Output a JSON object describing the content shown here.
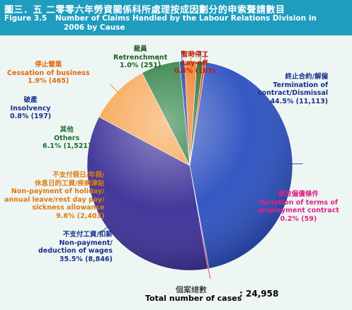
{
  "header": {
    "title_zh": "圖三．五 二零零六年勞資關係科所處理按成因劃分的申索聲請數目",
    "figure_label": "Figure 3.5",
    "title_en_line1": "Number of Claims Handled by the Labour Relations Division in",
    "title_en_line2": "2006 by Cause"
  },
  "colors": {
    "header_bg": "#1e9dbf",
    "page_bg": "#eef6f4"
  },
  "chart_data": {
    "type": "pie",
    "title": "Number of Claims Handled by the Labour Relations Division in 2006 by Cause",
    "slices": [
      {
        "name_zh": "終止合約/解僱",
        "name_en": [
          "Termination of",
          "contract/Dismissal"
        ],
        "percent": 44.5,
        "count": 11113,
        "value_text": "44.5% (11,113)",
        "color": "#2a4fc0",
        "label_color": "#1a2f8a"
      },
      {
        "name_zh": "更改僱傭條件",
        "name_en": [
          "Variation of terms of",
          "employment contract"
        ],
        "percent": 0.2,
        "count": 59,
        "value_text": "0.2% (59)",
        "color": "#e8339a",
        "label_color": "#e0228a"
      },
      {
        "name_zh": "不支付工資/扣薪",
        "name_en": [
          "Non-payment/",
          "deduction of wages"
        ],
        "percent": 35.5,
        "count": 8846,
        "value_text": "35.5% (8,846)",
        "color": "#3a2e96",
        "label_color": "#1a2f8a"
      },
      {
        "name_zh": [
          "不支付假日/年假/",
          "休息日的工資/疾病津貼"
        ],
        "name_en": [
          "Non-payment of holiday/",
          "annual leave/rest day pay/",
          "sickness allowance"
        ],
        "percent": 9.6,
        "count": 2403,
        "value_text": "9.6% (2,403)",
        "color": "#f6a14a",
        "label_color": "#e07a10"
      },
      {
        "name_zh": "其他",
        "name_en": [
          "Others"
        ],
        "percent": 6.1,
        "count": 1521,
        "value_text": "6.1% (1,521)",
        "color": "#1f7a3a",
        "label_color": "#1d6e30"
      },
      {
        "name_zh": "破產",
        "name_en": [
          "Insolvency"
        ],
        "percent": 0.8,
        "count": 197,
        "value_text": "0.8% (197)",
        "color": "#1a2f9a",
        "label_color": "#1a2f8a"
      },
      {
        "name_zh": "停止營業",
        "name_en": [
          "Cessation of business"
        ],
        "percent": 1.9,
        "count": 465,
        "value_text": "1.9% (465)",
        "color": "#f07820",
        "label_color": "#e06a10"
      },
      {
        "name_zh": "裁員",
        "name_en": [
          "Retrenchment"
        ],
        "percent": 1.0,
        "count": 251,
        "value_text": "1.0% (251)",
        "color": "#1a6a2a",
        "label_color": "#1d5e20"
      },
      {
        "name_zh": "暫時停工",
        "name_en": [
          "Lay-off"
        ],
        "percent": 0.4,
        "count": 103,
        "value_text": "0.4% (103)",
        "color": "#e03010",
        "label_color": "#c02010"
      }
    ],
    "total": {
      "label_zh": "個案總數",
      "label_en": "Total number of cases",
      "separator": ":",
      "value_text": "24,958",
      "value": 24958
    }
  }
}
